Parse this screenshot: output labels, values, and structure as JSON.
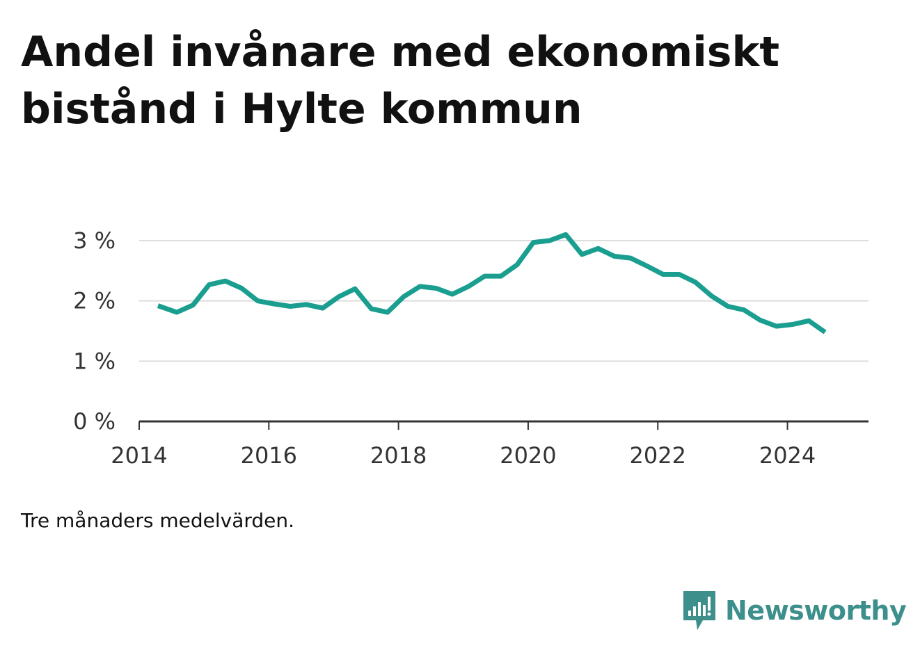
{
  "title": "Andel invånare med ekonomiskt bistånd i Hylte kommun",
  "note": "Tre månaders medelvärden.",
  "brand": {
    "name": "Newsworthy",
    "logo_icon": "bar-chart-speech-bubble-icon"
  },
  "colors": {
    "line": "#1a9e8f",
    "grid": "#dddddd",
    "axis": "#333333",
    "brand": "#3d8f8c"
  },
  "chart_data": {
    "type": "line",
    "title": "Andel invånare med ekonomiskt bistånd i Hylte kommun",
    "xlabel": "",
    "ylabel": "",
    "xlim": [
      2014,
      2025.25
    ],
    "ylim": [
      0,
      3
    ],
    "grid": true,
    "x_ticks": [
      2014,
      2016,
      2018,
      2020,
      2022,
      2024
    ],
    "x_tick_labels": [
      "2014",
      "2016",
      "2018",
      "2020",
      "2022",
      "2024"
    ],
    "y_ticks": [
      0,
      1,
      2,
      3
    ],
    "y_tick_labels": [
      "0 %",
      "1 %",
      "2 %",
      "3 %"
    ],
    "series": [
      {
        "name": "Andel invånare med ekonomiskt bistånd",
        "x": [
          2014.29,
          2014.58,
          2014.83,
          2015.08,
          2015.33,
          2015.58,
          2015.83,
          2016.08,
          2016.33,
          2016.58,
          2016.83,
          2017.08,
          2017.33,
          2017.58,
          2017.83,
          2018.08,
          2018.33,
          2018.58,
          2018.83,
          2019.08,
          2019.33,
          2019.58,
          2019.83,
          2020.08,
          2020.33,
          2020.58,
          2020.83,
          2021.08,
          2021.33,
          2021.58,
          2021.83,
          2022.08,
          2022.33,
          2022.58,
          2022.83,
          2023.08,
          2023.33,
          2023.58,
          2023.83,
          2024.08,
          2024.33,
          2024.58
        ],
        "values": [
          1.92,
          1.81,
          1.93,
          2.27,
          2.33,
          2.21,
          2.0,
          1.95,
          1.91,
          1.94,
          1.88,
          2.07,
          2.2,
          1.87,
          1.81,
          2.07,
          2.24,
          2.21,
          2.11,
          2.24,
          2.41,
          2.41,
          2.6,
          2.97,
          3.0,
          3.1,
          2.77,
          2.87,
          2.74,
          2.71,
          2.58,
          2.44,
          2.44,
          2.31,
          2.08,
          1.91,
          1.85,
          1.68,
          1.58,
          1.61,
          1.67,
          1.48
        ]
      }
    ]
  }
}
